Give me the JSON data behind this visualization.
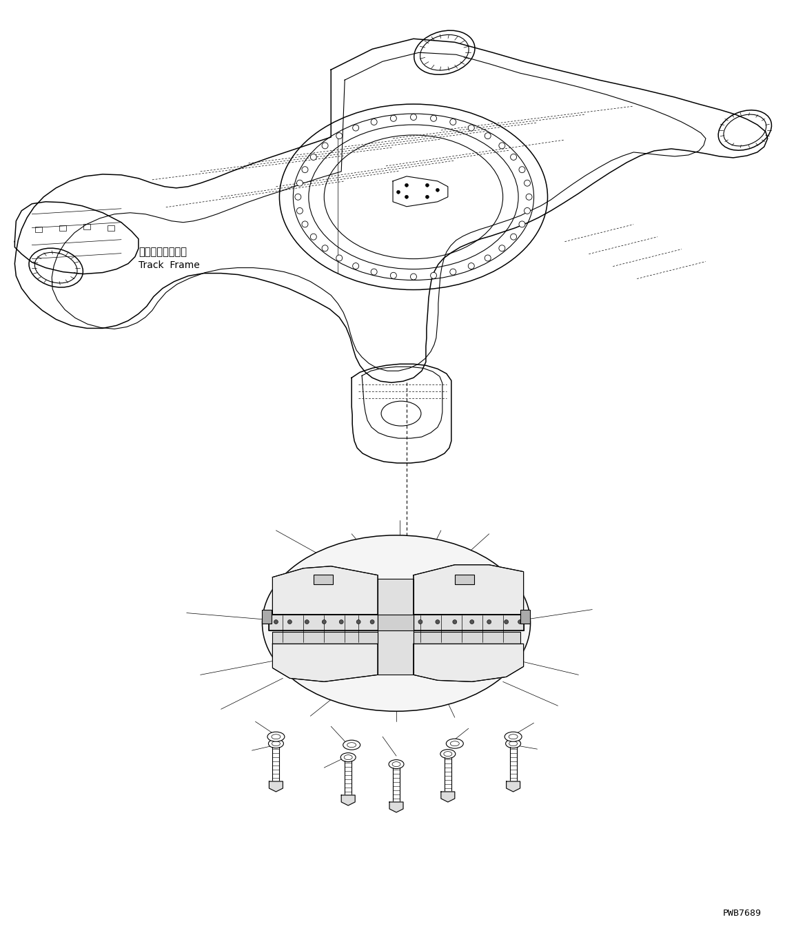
{
  "background_color": "#ffffff",
  "line_color": "#000000",
  "fig_width": 11.68,
  "fig_height": 13.57,
  "dpi": 100,
  "watermark_text": "PWB7689",
  "label_jp": "トラックフレーム",
  "label_en": "Track  Frame"
}
